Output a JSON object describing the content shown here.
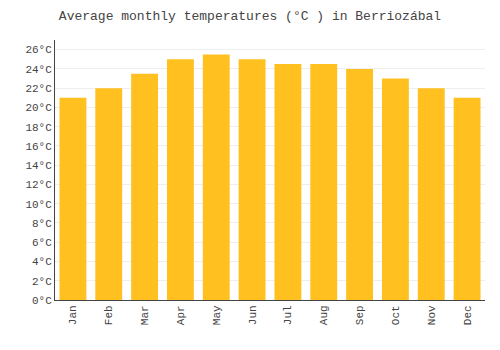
{
  "chart_data": {
    "type": "bar",
    "title": "Average monthly temperatures (°C ) in Berriozábal",
    "categories": [
      "Jan",
      "Feb",
      "Mar",
      "Apr",
      "May",
      "Jun",
      "Jul",
      "Aug",
      "Sep",
      "Oct",
      "Nov",
      "Dec"
    ],
    "values": [
      21.0,
      22.0,
      23.5,
      25.0,
      25.5,
      25.0,
      24.5,
      24.5,
      24.0,
      23.0,
      22.0,
      21.0
    ],
    "color": "#FFC020",
    "ylim": [
      0,
      27
    ],
    "yticks": [
      {
        "value": 0,
        "label": "0°C"
      },
      {
        "value": 2,
        "label": "2°C"
      },
      {
        "value": 4,
        "label": "4°C"
      },
      {
        "value": 6,
        "label": "6°C"
      },
      {
        "value": 8,
        "label": "8°C"
      },
      {
        "value": 10,
        "label": "10°C"
      },
      {
        "value": 12,
        "label": "12°C"
      },
      {
        "value": 14,
        "label": "14°C"
      },
      {
        "value": 16,
        "label": "16°C"
      },
      {
        "value": 18,
        "label": "18°C"
      },
      {
        "value": 20,
        "label": "20°C"
      },
      {
        "value": 22,
        "label": "22°C"
      },
      {
        "value": 24,
        "label": "24°C"
      },
      {
        "value": 26,
        "label": "26°C"
      }
    ],
    "grid": true
  }
}
